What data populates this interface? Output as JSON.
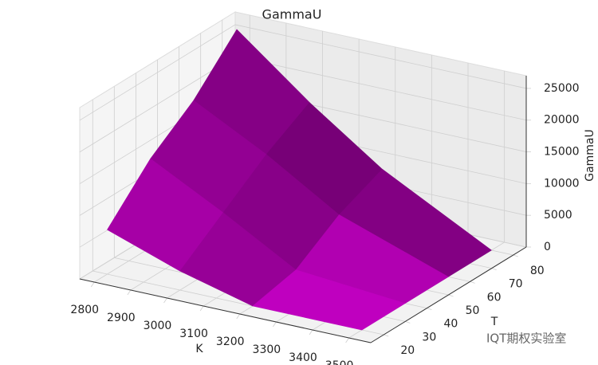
{
  "chart_data": {
    "type": "surface3d",
    "title": "GammaU",
    "x_label": "K",
    "y_label": "T",
    "z_label": "GammaU",
    "x": [
      2800,
      3000,
      3200,
      3500
    ],
    "y": [
      20,
      40,
      60,
      80
    ],
    "z": [
      [
        7000,
        3000,
        0,
        0
      ],
      [
        14000,
        8000,
        1500,
        0
      ],
      [
        19000,
        13000,
        6000,
        0
      ],
      [
        26000,
        17000,
        9000,
        0
      ]
    ],
    "xlim": [
      2760,
      3560
    ],
    "ylim": [
      14,
      86
    ],
    "zlim": [
      0,
      27000
    ],
    "xticks": [
      2800,
      2900,
      3000,
      3100,
      3200,
      3300,
      3400,
      3500
    ],
    "yticks": [
      20,
      30,
      40,
      50,
      60,
      70,
      80
    ],
    "zticks": [
      0,
      5000,
      10000,
      15000,
      20000,
      25000
    ],
    "color": "#e600e6",
    "grid": true
  },
  "watermark": "IQT期权实验室"
}
